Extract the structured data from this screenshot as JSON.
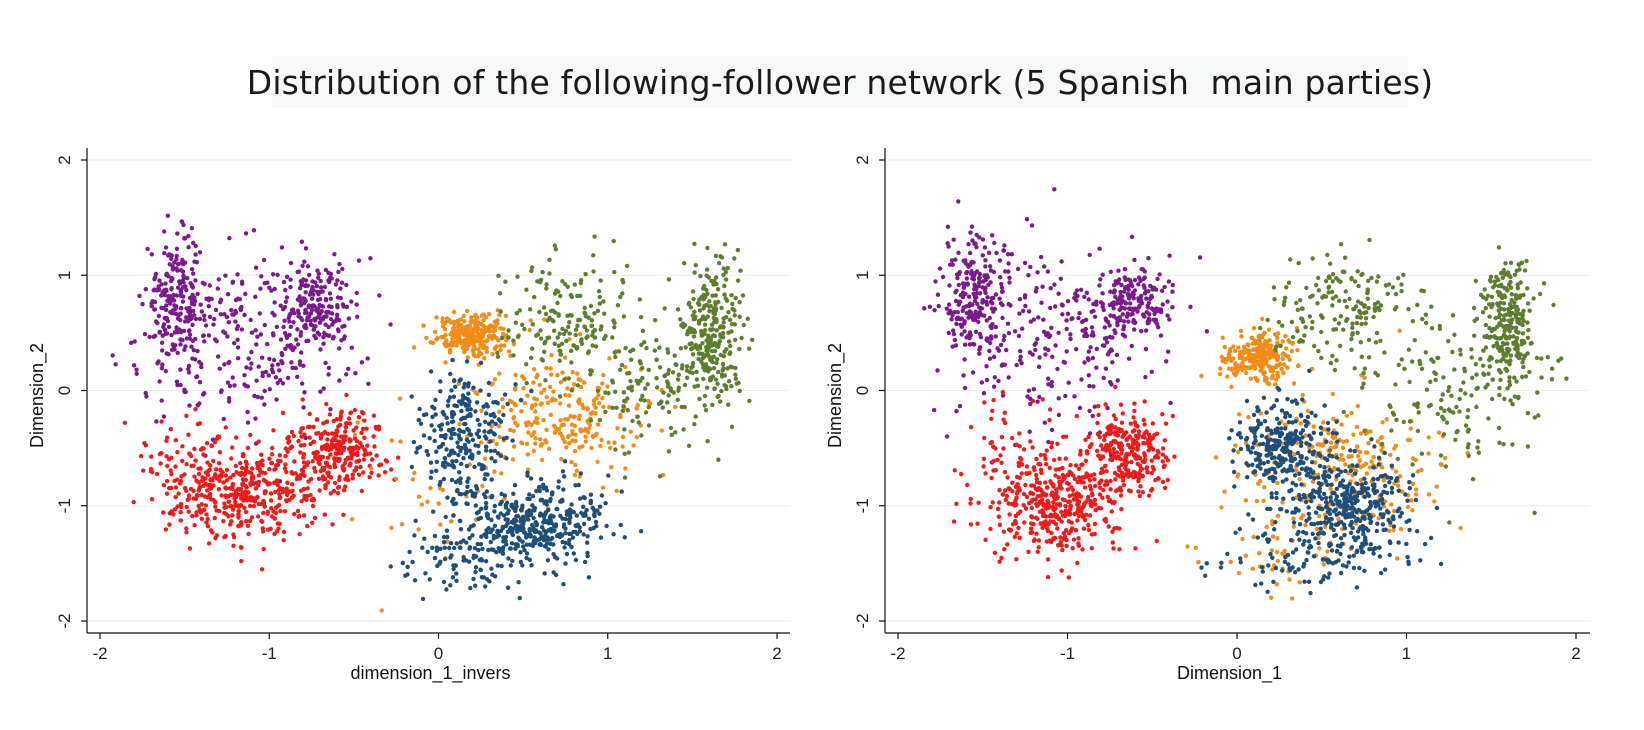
{
  "title": "Distribution of the following-follower network (5 Spanish  main parties)",
  "chart_data": [
    {
      "type": "scatter",
      "xlabel": "dimension_1_invers",
      "ylabel": "Dimension_2",
      "xlim": [
        -2.1,
        2.1
      ],
      "ylim": [
        -2.1,
        2.1
      ],
      "xticks": [
        -2,
        -1,
        0,
        1,
        2
      ],
      "yticks": [
        -2,
        -1,
        0,
        1,
        2
      ],
      "grid": "horizontal",
      "series": [
        {
          "color": "#7b1a8c",
          "clusters": [
            {
              "cx": -1.55,
              "cy": 0.75,
              "sx": 0.09,
              "sy": 0.28,
              "n": 230
            },
            {
              "cx": -0.72,
              "cy": 0.72,
              "sx": 0.11,
              "sy": 0.18,
              "n": 170
            },
            {
              "cx": -1.1,
              "cy": 0.45,
              "sx": 0.32,
              "sy": 0.42,
              "n": 260
            }
          ]
        },
        {
          "color": "#ee1b1b",
          "clusters": [
            {
              "cx": -1.1,
              "cy": -0.88,
              "sx": 0.22,
              "sy": 0.2,
              "n": 380
            },
            {
              "cx": -0.6,
              "cy": -0.5,
              "sx": 0.14,
              "sy": 0.18,
              "n": 260
            },
            {
              "cx": -1.45,
              "cy": -0.7,
              "sx": 0.15,
              "sy": 0.25,
              "n": 90
            }
          ]
        },
        {
          "color": "#f28c18",
          "clusters": [
            {
              "cx": 0.2,
              "cy": 0.48,
              "sx": 0.11,
              "sy": 0.09,
              "n": 260
            },
            {
              "cx": 0.7,
              "cy": -0.2,
              "sx": 0.25,
              "sy": 0.25,
              "n": 250
            },
            {
              "cx": 0.0,
              "cy": -0.9,
              "sx": 0.3,
              "sy": 0.4,
              "n": 40
            }
          ]
        },
        {
          "color": "#1f4e79",
          "clusters": [
            {
              "cx": 0.15,
              "cy": -0.4,
              "sx": 0.13,
              "sy": 0.28,
              "n": 260
            },
            {
              "cx": 0.55,
              "cy": -1.15,
              "sx": 0.22,
              "sy": 0.18,
              "n": 390
            },
            {
              "cx": 0.2,
              "cy": -1.5,
              "sx": 0.2,
              "sy": 0.15,
              "n": 90
            }
          ]
        },
        {
          "color": "#5b7f2e",
          "clusters": [
            {
              "cx": 1.62,
              "cy": 0.5,
              "sx": 0.08,
              "sy": 0.32,
              "n": 250
            },
            {
              "cx": 1.3,
              "cy": 0.1,
              "sx": 0.25,
              "sy": 0.3,
              "n": 150
            },
            {
              "cx": 0.75,
              "cy": 0.6,
              "sx": 0.2,
              "sy": 0.25,
              "n": 170
            }
          ]
        }
      ]
    },
    {
      "type": "scatter",
      "xlabel": "Dimension_1",
      "ylabel": "Dimension_2",
      "xlim": [
        -2.1,
        2.1
      ],
      "ylim": [
        -2.1,
        2.1
      ],
      "xticks": [
        -2,
        -1,
        0,
        1,
        2
      ],
      "yticks": [
        -2,
        -1,
        0,
        1,
        2
      ],
      "grid": "horizontal",
      "series": [
        {
          "color": "#7b1a8c",
          "clusters": [
            {
              "cx": -1.55,
              "cy": 0.85,
              "sx": 0.09,
              "sy": 0.25,
              "n": 220
            },
            {
              "cx": -0.62,
              "cy": 0.78,
              "sx": 0.11,
              "sy": 0.16,
              "n": 170
            },
            {
              "cx": -1.05,
              "cy": 0.45,
              "sx": 0.32,
              "sy": 0.4,
              "n": 250
            }
          ]
        },
        {
          "color": "#ee1b1b",
          "clusters": [
            {
              "cx": -1.05,
              "cy": -1.0,
              "sx": 0.18,
              "sy": 0.22,
              "n": 360
            },
            {
              "cx": -0.65,
              "cy": -0.55,
              "sx": 0.12,
              "sy": 0.2,
              "n": 260
            },
            {
              "cx": -1.3,
              "cy": -0.7,
              "sx": 0.15,
              "sy": 0.28,
              "n": 90
            }
          ]
        },
        {
          "color": "#f28c18",
          "clusters": [
            {
              "cx": 0.12,
              "cy": 0.28,
              "sx": 0.11,
              "sy": 0.1,
              "n": 260
            },
            {
              "cx": 0.6,
              "cy": -0.65,
              "sx": 0.28,
              "sy": 0.28,
              "n": 280
            },
            {
              "cx": 0.2,
              "cy": -1.4,
              "sx": 0.25,
              "sy": 0.15,
              "n": 40
            }
          ]
        },
        {
          "color": "#1f4e79",
          "clusters": [
            {
              "cx": 0.25,
              "cy": -0.45,
              "sx": 0.13,
              "sy": 0.2,
              "n": 260
            },
            {
              "cx": 0.62,
              "cy": -1.0,
              "sx": 0.2,
              "sy": 0.22,
              "n": 380
            },
            {
              "cx": 0.5,
              "cy": -1.45,
              "sx": 0.3,
              "sy": 0.12,
              "n": 80
            }
          ]
        },
        {
          "color": "#5b7f2e",
          "clusters": [
            {
              "cx": 1.6,
              "cy": 0.55,
              "sx": 0.08,
              "sy": 0.3,
              "n": 250
            },
            {
              "cx": 1.25,
              "cy": 0.0,
              "sx": 0.25,
              "sy": 0.35,
              "n": 150
            },
            {
              "cx": 0.6,
              "cy": 0.7,
              "sx": 0.22,
              "sy": 0.25,
              "n": 170
            }
          ]
        }
      ]
    }
  ]
}
